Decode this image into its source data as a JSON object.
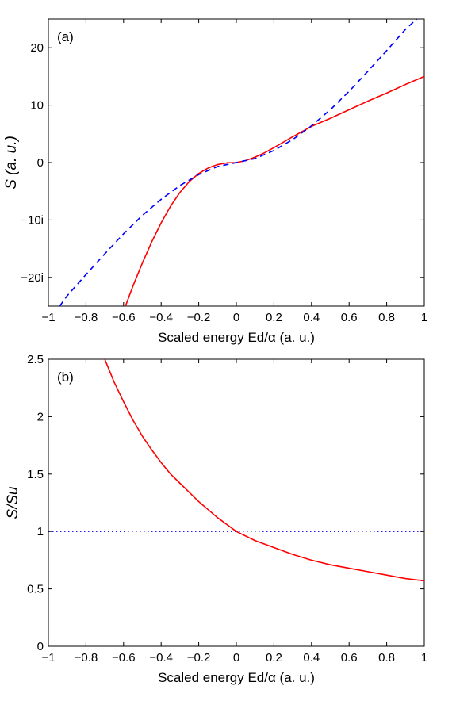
{
  "chart_data": [
    {
      "type": "line",
      "panel_label": "(a)",
      "xlabel": "Scaled energy Ed/α (a. u.)",
      "ylabel": "S (a. u.)",
      "xlim": [
        -1,
        1
      ],
      "ylim": [
        -25,
        25
      ],
      "x_ticks": [
        -1,
        -0.8,
        -0.6,
        -0.4,
        -0.2,
        0,
        0.2,
        0.4,
        0.6,
        0.8,
        1
      ],
      "x_tick_labels": [
        "−1",
        "−0.8",
        "−0.6",
        "−0.4",
        "−0.2",
        "0",
        "0.2",
        "0.4",
        "0.6",
        "0.8",
        "1"
      ],
      "y_ticks": [
        -20,
        -10,
        0,
        10,
        20
      ],
      "y_tick_labels": [
        "−20i",
        "−10i",
        "0",
        "10",
        "20"
      ],
      "grid": false,
      "series": [
        {
          "style": "solid",
          "color": "#ff0000",
          "x": [
            -0.59,
            -0.55,
            -0.5,
            -0.45,
            -0.4,
            -0.35,
            -0.3,
            -0.25,
            -0.2,
            -0.15,
            -0.1,
            -0.05,
            0,
            0.05,
            0.1,
            0.15,
            0.2,
            0.3,
            0.4,
            0.5,
            0.6,
            0.7,
            0.8,
            0.9,
            1.0
          ],
          "y": [
            -25,
            -21.5,
            -17.5,
            -13.8,
            -10.5,
            -7.6,
            -5.2,
            -3.3,
            -1.9,
            -0.95,
            -0.35,
            -0.05,
            0,
            0.35,
            0.95,
            1.7,
            2.6,
            4.5,
            6.3,
            7.7,
            9.2,
            10.7,
            12.1,
            13.6,
            15.0
          ]
        },
        {
          "style": "dashed",
          "color": "#0000ff",
          "x": [
            -0.94,
            -0.9,
            -0.8,
            -0.7,
            -0.6,
            -0.5,
            -0.4,
            -0.3,
            -0.2,
            -0.1,
            0,
            0.1,
            0.2,
            0.3,
            0.4,
            0.5,
            0.6,
            0.7,
            0.8,
            0.9,
            0.96
          ],
          "y": [
            -25,
            -23.2,
            -19.5,
            -15.9,
            -12.4,
            -9.2,
            -6.4,
            -4.0,
            -2.1,
            -0.7,
            0,
            0.7,
            2.1,
            4.0,
            6.4,
            9.2,
            12.4,
            15.9,
            19.5,
            23.2,
            25
          ]
        }
      ]
    },
    {
      "type": "line",
      "panel_label": "(b)",
      "xlabel": "Scaled energy Ed/α (a. u.)",
      "ylabel": "S/Su",
      "xlim": [
        -1,
        1
      ],
      "ylim": [
        0,
        2.5
      ],
      "x_ticks": [
        -1,
        -0.8,
        -0.6,
        -0.4,
        -0.2,
        0,
        0.2,
        0.4,
        0.6,
        0.8,
        1
      ],
      "x_tick_labels": [
        "−1",
        "−0.8",
        "−0.6",
        "−0.4",
        "−0.2",
        "0",
        "0.2",
        "0.4",
        "0.6",
        "0.8",
        "1"
      ],
      "y_ticks": [
        0,
        0.5,
        1,
        1.5,
        2,
        2.5
      ],
      "y_tick_labels": [
        "0",
        "0.5",
        "1",
        "1.5",
        "2",
        "2.5"
      ],
      "grid": false,
      "series": [
        {
          "style": "solid",
          "color": "#ff0000",
          "x": [
            -0.7,
            -0.65,
            -0.6,
            -0.55,
            -0.5,
            -0.45,
            -0.4,
            -0.35,
            -0.3,
            -0.25,
            -0.2,
            -0.15,
            -0.1,
            -0.05,
            0,
            0.1,
            0.2,
            0.3,
            0.4,
            0.5,
            0.6,
            0.7,
            0.8,
            0.9,
            1.0
          ],
          "y": [
            2.5,
            2.3,
            2.13,
            1.97,
            1.83,
            1.71,
            1.6,
            1.5,
            1.42,
            1.34,
            1.26,
            1.19,
            1.12,
            1.06,
            1.0,
            0.92,
            0.86,
            0.8,
            0.75,
            0.71,
            0.68,
            0.65,
            0.62,
            0.59,
            0.57
          ]
        },
        {
          "style": "dotted",
          "color": "#0000ff",
          "x": [
            -1,
            1
          ],
          "y": [
            1,
            1
          ]
        }
      ]
    }
  ]
}
